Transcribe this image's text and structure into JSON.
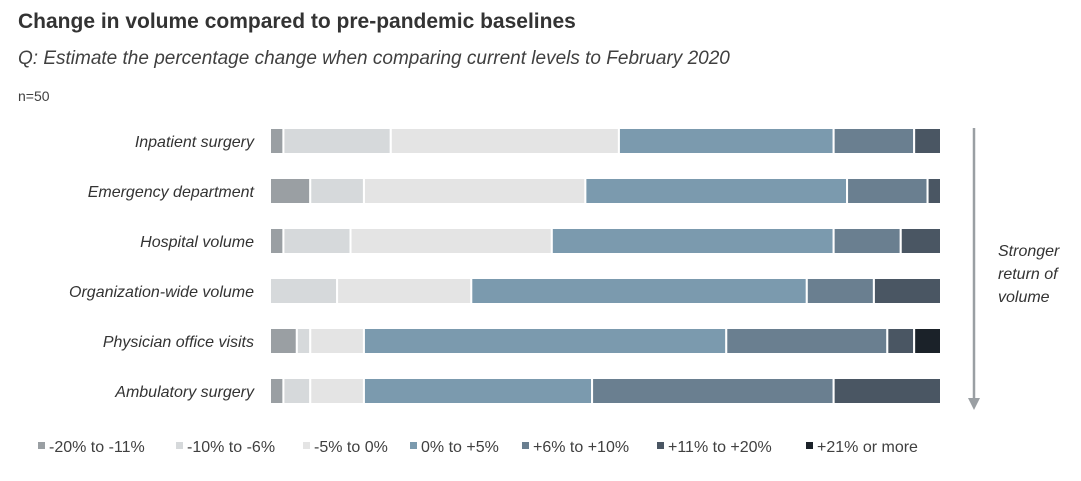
{
  "header": {
    "title": "Change in volume compared to pre-pandemic baselines",
    "subtitle": "Q: Estimate the percentage change when comparing current levels to February 2020",
    "note": "n=50"
  },
  "arrow_label": [
    "Stronger",
    "return of",
    "volume"
  ],
  "chart_data": {
    "type": "bar",
    "orientation": "horizontal",
    "stacked": true,
    "categories": [
      "Inpatient surgery",
      "Emergency department",
      "Hospital volume",
      "Organization-wide volume",
      "Physician office visits",
      "Ambulatory surgery"
    ],
    "xlim": [
      0,
      100
    ],
    "grid": false,
    "legend_position": "bottom",
    "series": [
      {
        "name": "-20% to -11%",
        "color": "#9a9fa3",
        "values": [
          2,
          6,
          2,
          0,
          4,
          2
        ]
      },
      {
        "name": "-10% to -6%",
        "color": "#d6d9db",
        "values": [
          16,
          8,
          10,
          10,
          2,
          4
        ]
      },
      {
        "name": "-5% to 0%",
        "color": "#e4e4e4",
        "values": [
          34,
          33,
          30,
          20,
          8,
          8
        ]
      },
      {
        "name": "0% to +5%",
        "color": "#7b9aae",
        "values": [
          32,
          39,
          42,
          50,
          54,
          34
        ]
      },
      {
        "name": "+6% to +10%",
        "color": "#6a7f90",
        "values": [
          12,
          12,
          10,
          10,
          24,
          36
        ]
      },
      {
        "name": "+11% to +20%",
        "color": "#4a5663",
        "values": [
          4,
          2,
          6,
          10,
          4,
          16
        ]
      },
      {
        "name": "+21% or more",
        "color": "#1b2229",
        "values": [
          0,
          0,
          0,
          0,
          4,
          0
        ]
      }
    ]
  }
}
